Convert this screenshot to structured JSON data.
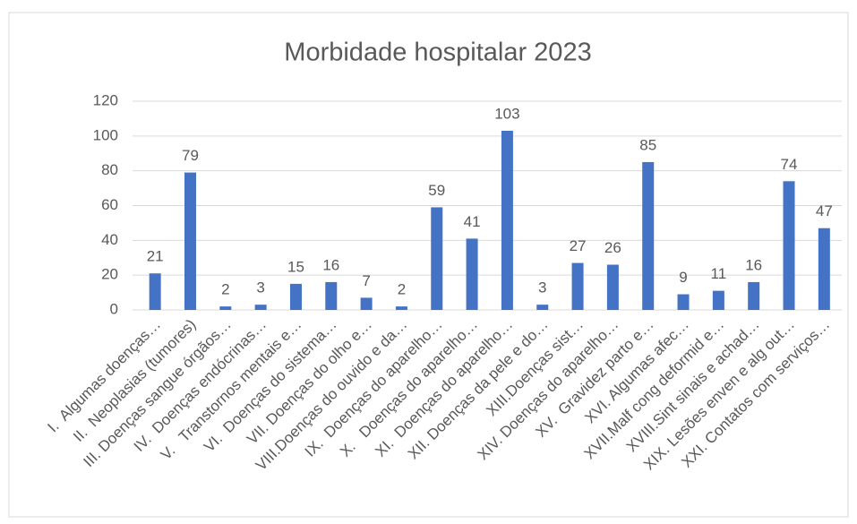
{
  "chart_data": {
    "type": "bar",
    "title": "Morbidade hospitalar 2023",
    "categories": [
      "I.  Algumas doenças…",
      "II.  Neoplasias (tumores)",
      "III. Doenças sangue órgãos…",
      "IV.  Doenças endócrinas…",
      "V.   Transtornos mentais e…",
      "VI.  Doenças do sistema…",
      "VII. Doenças do olho e…",
      "VIII.Doenças do ouvido e da…",
      "IX.  Doenças do aparelho…",
      "X.   Doenças do aparelho…",
      "XI.  Doenças do aparelho…",
      "XII. Doenças da pele e do…",
      "XIII.Doenças sist…",
      "XIV. Doenças do aparelho…",
      "XV.  Gravidez parto e…",
      "XVI. Algumas afec…",
      "XVII.Malf cong deformid e…",
      "XVIII.Sint sinais e achad…",
      "XIX. Lesões enven e alg out…",
      "XXI. Contatos com serviços…"
    ],
    "values": [
      21,
      79,
      2,
      3,
      15,
      16,
      7,
      2,
      59,
      41,
      103,
      3,
      27,
      26,
      85,
      9,
      11,
      16,
      74,
      47
    ],
    "color": "#4472c4",
    "ylim": [
      0,
      120
    ],
    "yticks": [
      0,
      20,
      40,
      60,
      80,
      100,
      120
    ],
    "grid": true
  }
}
